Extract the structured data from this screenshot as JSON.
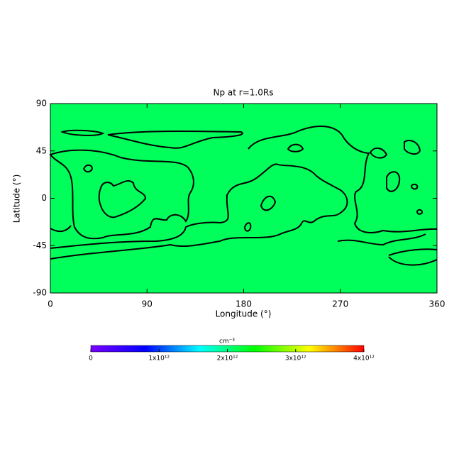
{
  "chart_data": {
    "type": "contour-map",
    "title": "Np at r=1.0Rs",
    "x_label": "Longitude (°)",
    "y_label": "Latitude (°)",
    "xlim": [
      0,
      360
    ],
    "xticks": [
      0,
      90,
      180,
      270,
      360
    ],
    "ylim": [
      -90,
      90
    ],
    "yticks": [
      -90,
      -45,
      0,
      45,
      90
    ],
    "field_color": "#00ff5a",
    "colorbar": {
      "label": "cm⁻³",
      "lim": [
        0,
        4000000000000
      ],
      "ticks": [
        0,
        {
          "value": 1000000000000,
          "label": "1x10¹²"
        },
        {
          "value": 2000000000000,
          "label": "2x10¹²"
        },
        {
          "value": 3000000000000,
          "label": "3x10¹²"
        },
        {
          "value": 4000000000000,
          "label": "4x10¹²"
        }
      ],
      "colormap": [
        "#7a00ff",
        "#0000ff",
        "#00ffff",
        "#00ff00",
        "#ffff00",
        "#ff0000"
      ]
    }
  }
}
